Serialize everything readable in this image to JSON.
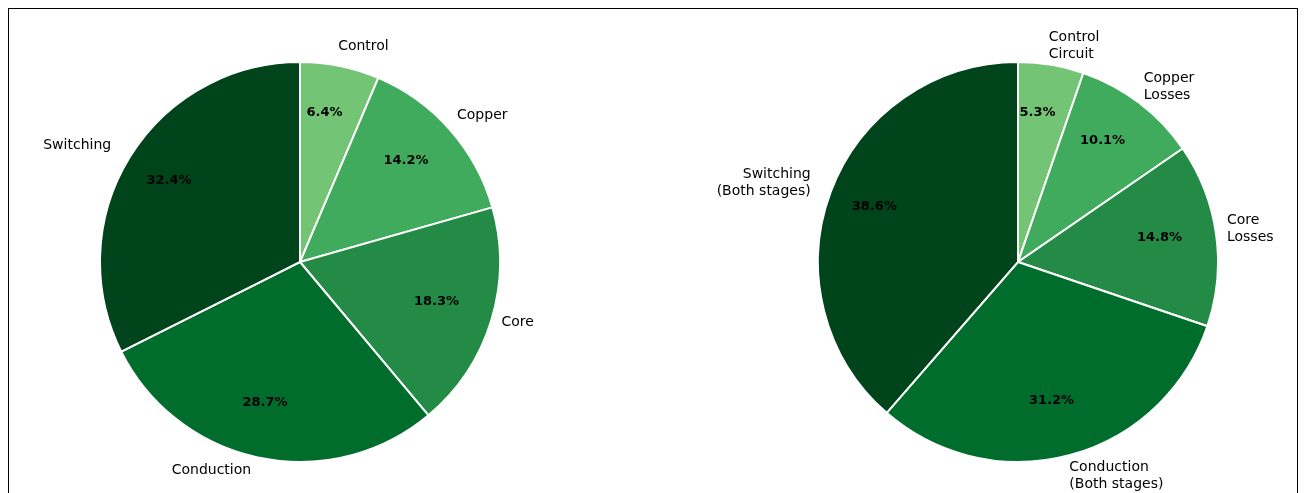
{
  "chart_data": [
    {
      "type": "pie",
      "categories": [
        "Control",
        "Copper",
        "Core",
        "Conduction",
        "Switching"
      ],
      "values": [
        6.4,
        14.2,
        18.3,
        28.7,
        32.4
      ],
      "colors": [
        "#74c476",
        "#41ab5d",
        "#238b45",
        "#006d2c",
        "#00441b"
      ],
      "value_labels": [
        "6.4%",
        "14.2%",
        "18.3%",
        "28.7%",
        "32.4%"
      ]
    },
    {
      "type": "pie",
      "categories": [
        "Control\nCircuit",
        "Copper\nLosses",
        "Core\nLosses",
        "Conduction\n(Both stages)",
        "Switching\n(Both stages)"
      ],
      "values": [
        5.3,
        10.1,
        14.8,
        31.2,
        38.6
      ],
      "colors": [
        "#74c476",
        "#41ab5d",
        "#238b45",
        "#006d2c",
        "#00441b"
      ],
      "value_labels": [
        "5.3%",
        "10.1%",
        "14.8%",
        "31.2%",
        "38.6%"
      ]
    }
  ]
}
